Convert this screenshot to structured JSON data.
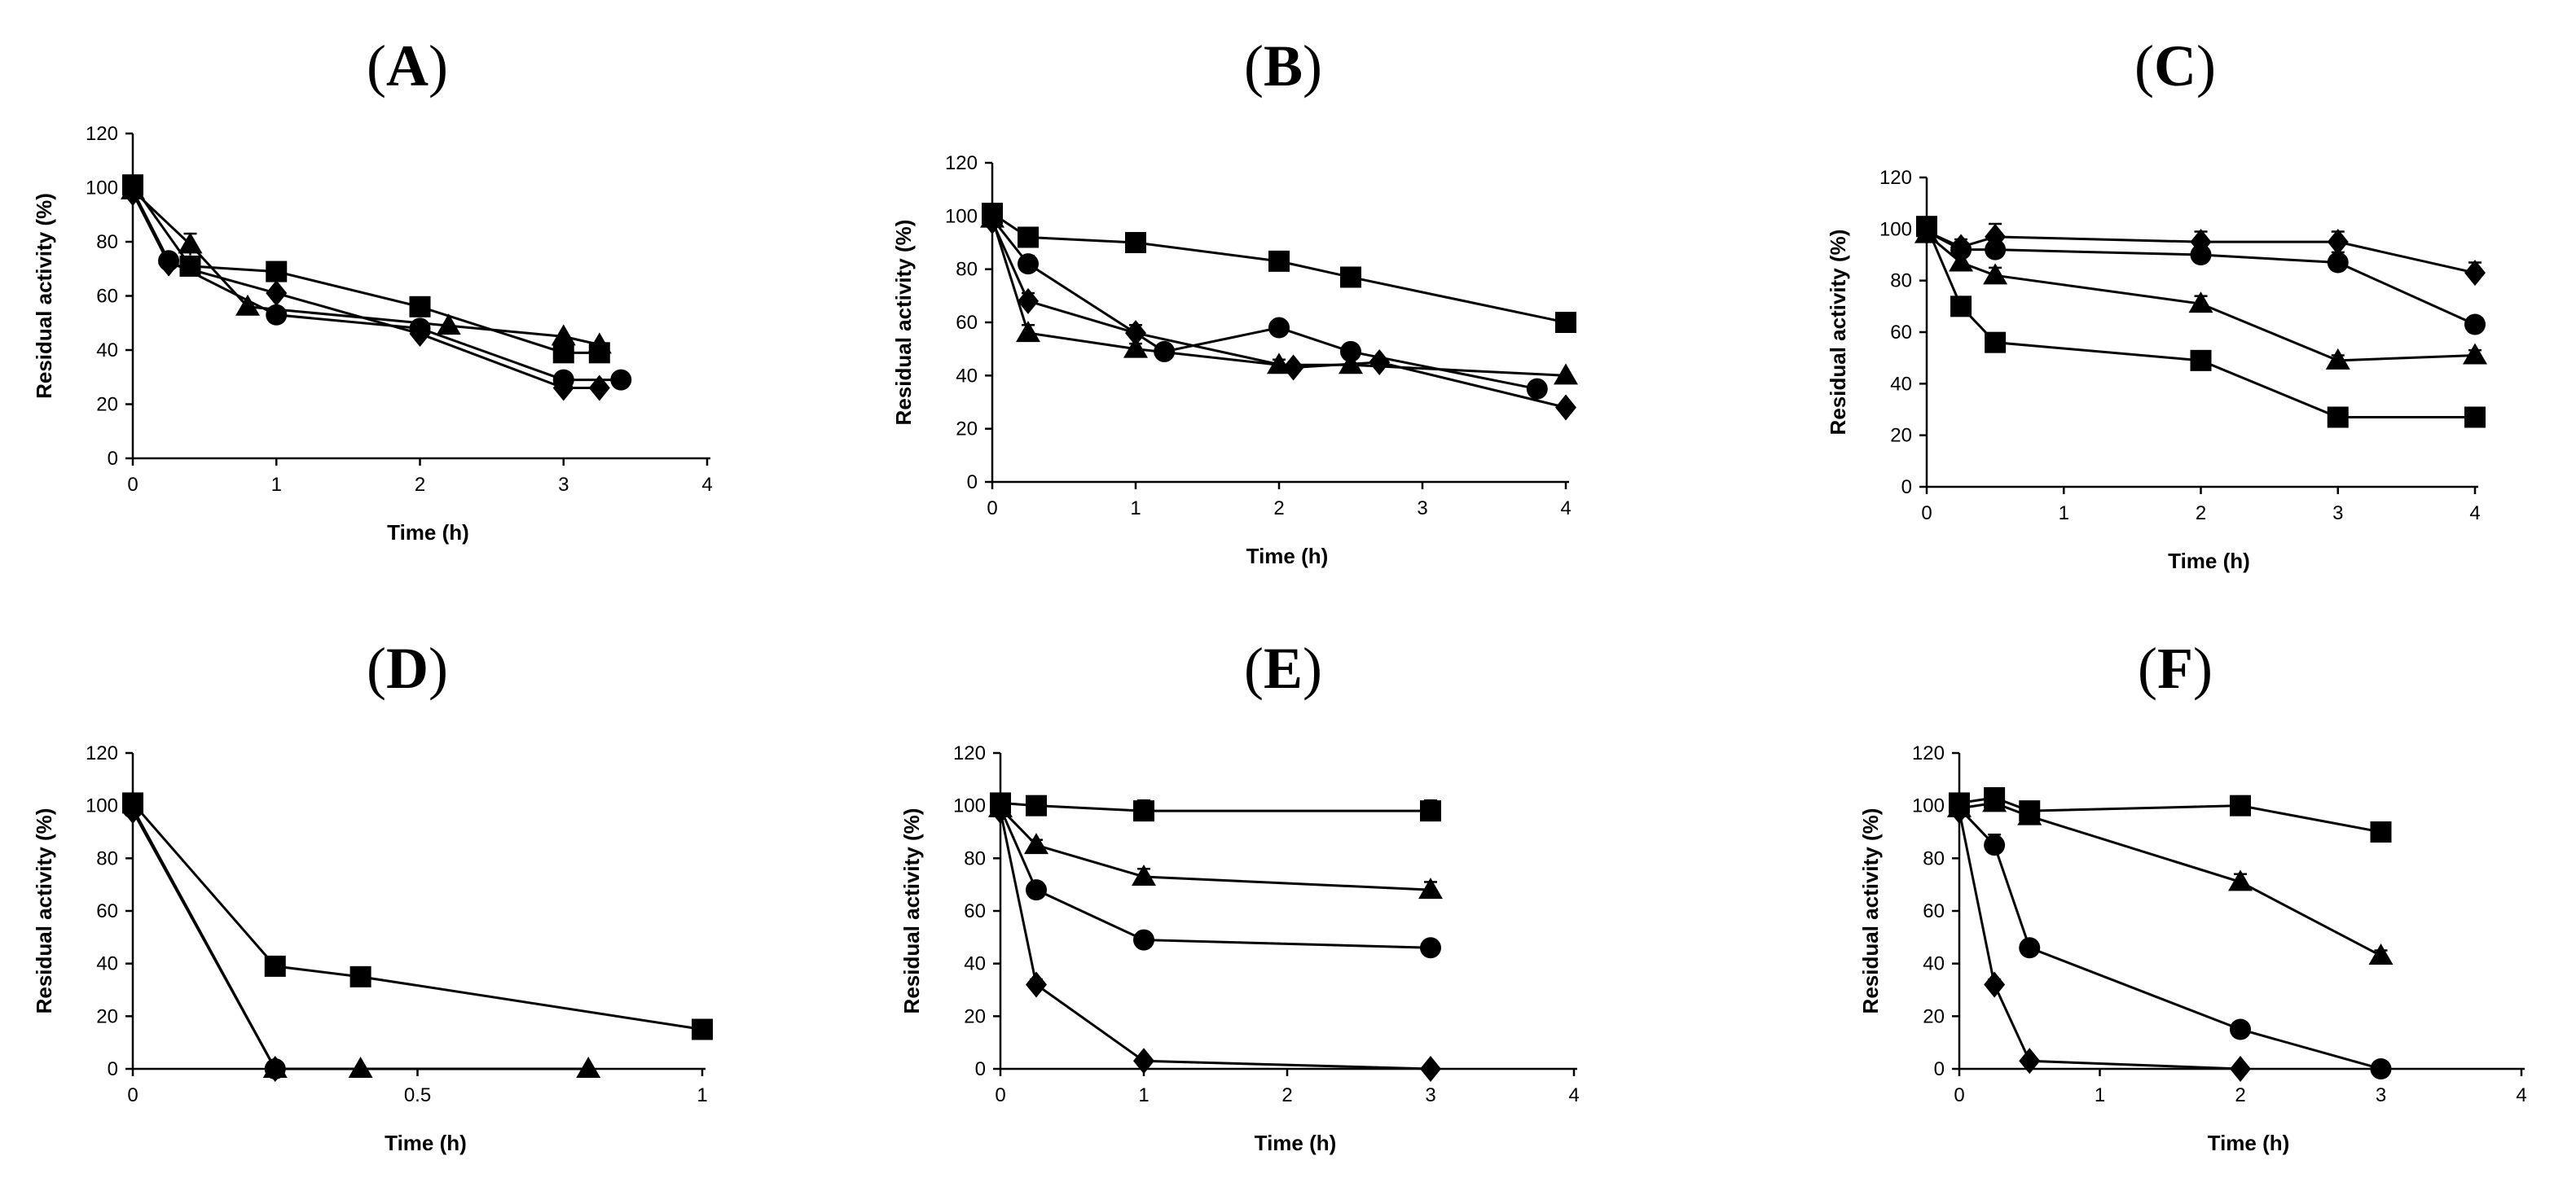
{
  "chart_data": [
    {
      "id": "A",
      "type": "line",
      "panel_label": "A",
      "xlabel": "Time (h)",
      "ylabel": "Residual activity (%)",
      "xlim": [
        0,
        4
      ],
      "ylim": [
        0,
        120
      ],
      "xticks": [
        0,
        1,
        2,
        3,
        4
      ],
      "xtick_labels": [
        "0",
        "1",
        "2",
        "3",
        "4"
      ],
      "yticks": [
        0,
        20,
        40,
        60,
        80,
        100,
        120
      ],
      "ytick_labels": [
        "0",
        "20",
        "40",
        "60",
        "80",
        "100",
        "120"
      ],
      "series": [
        {
          "name": "square",
          "marker": "square",
          "x": [
            0,
            0.4,
            1,
            2,
            3,
            3.25
          ],
          "y": [
            101,
            71,
            69,
            56,
            39,
            39
          ],
          "err": [
            0,
            2,
            0,
            2,
            2,
            0
          ]
        },
        {
          "name": "triangle",
          "marker": "triangle",
          "x": [
            0,
            0.4,
            0.8,
            2.2,
            3,
            3.25
          ],
          "y": [
            99,
            79,
            56,
            49,
            45,
            42
          ],
          "err": [
            0,
            4,
            0,
            0,
            0,
            0
          ]
        },
        {
          "name": "circle",
          "marker": "circle",
          "x": [
            0,
            0.25,
            1,
            2,
            3,
            3.4
          ],
          "y": [
            99,
            73,
            53,
            48,
            29,
            29
          ],
          "err": [
            0,
            2,
            0,
            0,
            0,
            0
          ]
        },
        {
          "name": "diamond",
          "marker": "diamond",
          "x": [
            0,
            0.25,
            1,
            2,
            3,
            3.25
          ],
          "y": [
            98,
            72,
            61,
            46,
            26,
            26
          ],
          "err": [
            0,
            2,
            0,
            2,
            0,
            0
          ]
        }
      ]
    },
    {
      "id": "B",
      "type": "line",
      "panel_label": "B",
      "xlabel": "Time (h)",
      "ylabel": "Residual activity (%)",
      "xlim": [
        0,
        4
      ],
      "ylim": [
        0,
        120
      ],
      "xticks": [
        0,
        1,
        2,
        3,
        4
      ],
      "xtick_labels": [
        "0",
        "1",
        "2",
        "3",
        "4"
      ],
      "yticks": [
        0,
        20,
        40,
        60,
        80,
        100,
        120
      ],
      "ytick_labels": [
        "0",
        "20",
        "40",
        "60",
        "80",
        "100",
        "120"
      ],
      "series": [
        {
          "name": "square",
          "marker": "square",
          "x": [
            0,
            0.25,
            1,
            2,
            2.5,
            4
          ],
          "y": [
            101,
            92,
            90,
            83,
            77,
            60
          ],
          "err": [
            0,
            2,
            2,
            0,
            0,
            0
          ]
        },
        {
          "name": "triangle",
          "marker": "triangle",
          "x": [
            0,
            0.25,
            1,
            2,
            2.5,
            4
          ],
          "y": [
            99,
            56,
            50,
            44,
            44,
            40
          ],
          "err": [
            0,
            3,
            2,
            2,
            0,
            0
          ]
        },
        {
          "name": "circle",
          "marker": "circle",
          "x": [
            0,
            0.25,
            1.2,
            2,
            2.5,
            3.8
          ],
          "y": [
            99,
            82,
            49,
            58,
            49,
            35
          ],
          "err": [
            0,
            3,
            0,
            0,
            0,
            0
          ]
        },
        {
          "name": "diamond",
          "marker": "diamond",
          "x": [
            0,
            0.25,
            1,
            2.1,
            2.7,
            4
          ],
          "y": [
            98,
            68,
            56,
            43,
            45,
            28
          ],
          "err": [
            0,
            3,
            3,
            0,
            0,
            0
          ]
        }
      ]
    },
    {
      "id": "C",
      "type": "line",
      "panel_label": "C",
      "xlabel": "Time (h)",
      "ylabel": "Residual activity (%)",
      "xlim": [
        0,
        4
      ],
      "ylim": [
        0,
        120
      ],
      "xticks": [
        0,
        1,
        2,
        3,
        4
      ],
      "xtick_labels": [
        "0",
        "1",
        "2",
        "3",
        "4"
      ],
      "yticks": [
        0,
        20,
        40,
        60,
        80,
        100,
        120
      ],
      "ytick_labels": [
        "0",
        "20",
        "40",
        "60",
        "80",
        "100",
        "120"
      ],
      "series": [
        {
          "name": "diamond",
          "marker": "diamond",
          "x": [
            0,
            0.25,
            0.5,
            2,
            3,
            4
          ],
          "y": [
            99,
            93,
            97,
            95,
            95,
            83
          ],
          "err": [
            0,
            3,
            5,
            4,
            4,
            4
          ]
        },
        {
          "name": "circle",
          "marker": "circle",
          "x": [
            0,
            0.25,
            0.5,
            2,
            3,
            4
          ],
          "y": [
            99,
            92,
            92,
            90,
            87,
            63
          ],
          "err": [
            0,
            2,
            2,
            4,
            4,
            2
          ]
        },
        {
          "name": "triangle",
          "marker": "triangle",
          "x": [
            0,
            0.25,
            0.5,
            2,
            3,
            4
          ],
          "y": [
            98,
            87,
            82,
            71,
            49,
            51
          ],
          "err": [
            0,
            3,
            3,
            3,
            2,
            2
          ]
        },
        {
          "name": "square",
          "marker": "square",
          "x": [
            0,
            0.25,
            0.5,
            2,
            3,
            4
          ],
          "y": [
            101,
            70,
            56,
            49,
            27,
            27
          ],
          "err": [
            0,
            0,
            0,
            0,
            0,
            0
          ]
        }
      ]
    },
    {
      "id": "D",
      "type": "line",
      "panel_label": "D",
      "xlabel": "Time (h)",
      "ylabel": "Residual activity (%)",
      "xlim": [
        0,
        1
      ],
      "ylim": [
        0,
        120
      ],
      "xticks": [
        0,
        0.5,
        1
      ],
      "xtick_labels": [
        "0",
        "0.5",
        "1"
      ],
      "yticks": [
        0,
        20,
        40,
        60,
        80,
        100,
        120
      ],
      "ytick_labels": [
        "0",
        "20",
        "40",
        "60",
        "80",
        "100",
        "120"
      ],
      "series": [
        {
          "name": "square",
          "marker": "square",
          "x": [
            0,
            0.25,
            0.4,
            1
          ],
          "y": [
            101,
            39,
            35,
            15
          ],
          "err": [
            0,
            0,
            0,
            0
          ]
        },
        {
          "name": "triangle",
          "marker": "triangle",
          "x": [
            0.25,
            0.4,
            0.8
          ],
          "y": [
            0,
            0,
            0
          ],
          "err": [
            0,
            0,
            0
          ]
        },
        {
          "name": "circle",
          "marker": "circle",
          "x": [
            0,
            0.25
          ],
          "y": [
            99,
            0
          ],
          "err": [
            0,
            0
          ]
        },
        {
          "name": "diamond",
          "marker": "diamond",
          "x": [
            0,
            0.25
          ],
          "y": [
            98,
            0
          ],
          "err": [
            0,
            0
          ]
        }
      ]
    },
    {
      "id": "E",
      "type": "line",
      "panel_label": "E",
      "xlabel": "Time (h)",
      "ylabel": "Residual activity (%)",
      "xlim": [
        0,
        4
      ],
      "ylim": [
        0,
        120
      ],
      "xticks": [
        0,
        1,
        2,
        3,
        4
      ],
      "xtick_labels": [
        "0",
        "1",
        "2",
        "3",
        "4"
      ],
      "yticks": [
        0,
        20,
        40,
        60,
        80,
        100,
        120
      ],
      "ytick_labels": [
        "0",
        "20",
        "40",
        "60",
        "80",
        "100",
        "120"
      ],
      "series": [
        {
          "name": "square",
          "marker": "square",
          "x": [
            0,
            0.25,
            1,
            3
          ],
          "y": [
            101,
            100,
            98,
            98
          ],
          "err": [
            0,
            3,
            4,
            4
          ]
        },
        {
          "name": "triangle",
          "marker": "triangle",
          "x": [
            0,
            0.25,
            1,
            3
          ],
          "y": [
            99,
            85,
            73,
            68
          ],
          "err": [
            0,
            2,
            3,
            3
          ]
        },
        {
          "name": "circle",
          "marker": "circle",
          "x": [
            0,
            0.25,
            1,
            3
          ],
          "y": [
            99,
            68,
            49,
            46
          ],
          "err": [
            0,
            2,
            2,
            2
          ]
        },
        {
          "name": "diamond",
          "marker": "diamond",
          "x": [
            0,
            0.25,
            1,
            3
          ],
          "y": [
            98,
            32,
            3,
            0
          ],
          "err": [
            0,
            2,
            0,
            0
          ]
        }
      ]
    },
    {
      "id": "F",
      "type": "line",
      "panel_label": "F",
      "xlabel": "Time (h)",
      "ylabel": "Residual activity (%)",
      "xlim": [
        0,
        4
      ],
      "ylim": [
        0,
        120
      ],
      "xticks": [
        0,
        1,
        2,
        3,
        4
      ],
      "xtick_labels": [
        "0",
        "1",
        "2",
        "3",
        "4"
      ],
      "yticks": [
        0,
        20,
        40,
        60,
        80,
        100,
        120
      ],
      "ytick_labels": [
        "0",
        "20",
        "40",
        "60",
        "80",
        "100",
        "120"
      ],
      "series": [
        {
          "name": "square",
          "marker": "square",
          "x": [
            0,
            0.25,
            0.5,
            2,
            3
          ],
          "y": [
            101,
            103,
            98,
            100,
            90
          ],
          "err": [
            0,
            3,
            3,
            3,
            2
          ]
        },
        {
          "name": "triangle",
          "marker": "triangle",
          "x": [
            0,
            0.25,
            0.5,
            2,
            3
          ],
          "y": [
            99,
            101,
            96,
            71,
            43
          ],
          "err": [
            0,
            3,
            3,
            3,
            2
          ]
        },
        {
          "name": "circle",
          "marker": "circle",
          "x": [
            0,
            0.25,
            0.5,
            2,
            3
          ],
          "y": [
            99,
            85,
            46,
            15,
            0
          ],
          "err": [
            0,
            4,
            2,
            0,
            0
          ]
        },
        {
          "name": "diamond",
          "marker": "diamond",
          "x": [
            0,
            0.25,
            0.5,
            2
          ],
          "y": [
            98,
            32,
            3,
            0
          ],
          "err": [
            0,
            2,
            0,
            0
          ]
        }
      ]
    }
  ]
}
